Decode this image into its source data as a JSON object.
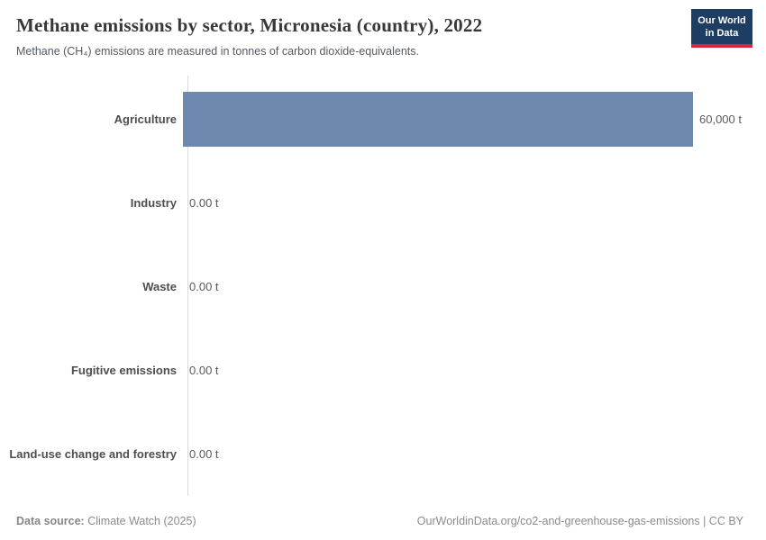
{
  "header": {
    "title": "Methane emissions by sector, Micronesia (country), 2022",
    "subtitle": "Methane (CH₄) emissions are measured in tonnes of carbon dioxide-equivalents.",
    "logo": {
      "line1": "Our World",
      "line2": "in Data"
    }
  },
  "chart_data": {
    "type": "bar",
    "orientation": "horizontal",
    "title": "Methane emissions by sector, Micronesia (country), 2022",
    "categories": [
      "Agriculture",
      "Industry",
      "Waste",
      "Fugitive emissions",
      "Land-use change and forestry"
    ],
    "values": [
      60000,
      0,
      0,
      0,
      0
    ],
    "value_labels": [
      "60,000 t",
      "0.00 t",
      "0.00 t",
      "0.00 t",
      "0.00 t"
    ],
    "unit": "t",
    "xlim": [
      0,
      60000
    ],
    "grid": false,
    "legend": "none",
    "bar_color": "#6e89af"
  },
  "footer": {
    "source_label": "Data source:",
    "source_value": " Climate Watch (2025)",
    "url": "OurWorldinData.org/co2-and-greenhouse-gas-emissions",
    "license": " | CC BY"
  },
  "colors": {
    "bar": "#6e89af",
    "axis": "#dcdcdc",
    "logo_bg": "#1d3d63",
    "logo_red": "#d4293c",
    "title_text": "#383838"
  }
}
